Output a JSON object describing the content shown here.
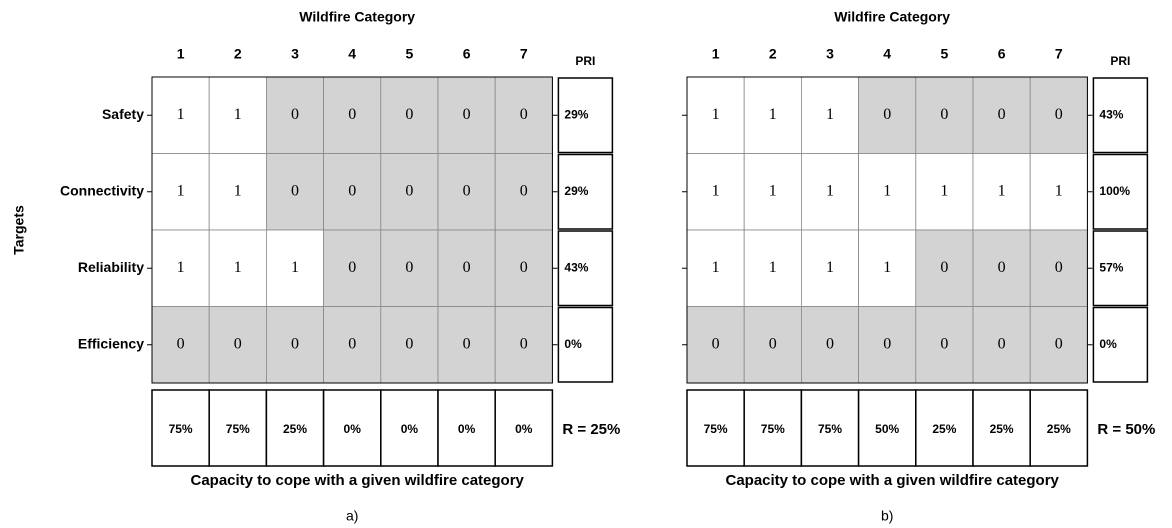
{
  "panels": [
    {
      "title": "Wildfire Category",
      "columns": [
        "1",
        "2",
        "3",
        "4",
        "5",
        "6",
        "7"
      ],
      "pri_header": "PRI",
      "row_axis_label": "Targets",
      "rows": [
        {
          "label": "Safety",
          "cells": [
            1,
            1,
            0,
            0,
            0,
            0,
            0
          ],
          "pri": "29%"
        },
        {
          "label": "Connectivity",
          "cells": [
            1,
            1,
            0,
            0,
            0,
            0,
            0
          ],
          "pri": "29%"
        },
        {
          "label": "Reliability",
          "cells": [
            1,
            1,
            1,
            0,
            0,
            0,
            0
          ],
          "pri": "43%"
        },
        {
          "label": "Efficiency",
          "cells": [
            0,
            0,
            0,
            0,
            0,
            0,
            0
          ],
          "pri": "0%"
        }
      ],
      "capacity": [
        "75%",
        "75%",
        "25%",
        "0%",
        "0%",
        "0%",
        "0%"
      ],
      "resilience": "R = 25%",
      "x_label": "Capacity to cope with a given wildfire category",
      "caption": "a)"
    },
    {
      "title": "Wildfire Category",
      "columns": [
        "1",
        "2",
        "3",
        "4",
        "5",
        "6",
        "7"
      ],
      "pri_header": "PRI",
      "rows": [
        {
          "cells": [
            1,
            1,
            1,
            0,
            0,
            0,
            0
          ],
          "pri": "43%"
        },
        {
          "cells": [
            1,
            1,
            1,
            1,
            1,
            1,
            1
          ],
          "pri": "100%"
        },
        {
          "cells": [
            1,
            1,
            1,
            1,
            0,
            0,
            0
          ],
          "pri": "57%"
        },
        {
          "cells": [
            0,
            0,
            0,
            0,
            0,
            0,
            0
          ],
          "pri": "0%"
        }
      ],
      "capacity": [
        "75%",
        "75%",
        "75%",
        "50%",
        "25%",
        "25%",
        "25%"
      ],
      "resilience": "R = 50%",
      "x_label": "Capacity to cope with a given wildfire category",
      "caption": "b)"
    }
  ]
}
